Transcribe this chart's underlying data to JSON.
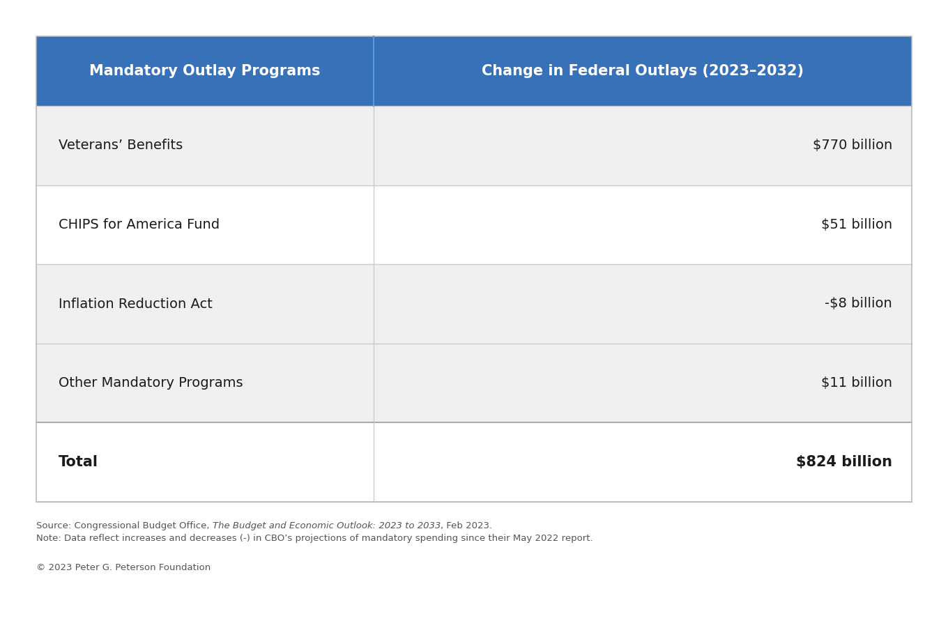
{
  "header_col1": "Mandatory Outlay Programs",
  "header_col2": "Change in Federal Outlays (2023–2032)",
  "rows": [
    {
      "label": "Veterans’ Benefits",
      "value": "$770 billion",
      "bg": "#f0f0f0"
    },
    {
      "label": "CHIPS for America Fund",
      "value": "$51 billion",
      "bg": "#ffffff"
    },
    {
      "label": "Inflation Reduction Act",
      "value": "-$8 billion",
      "bg": "#f0f0f0"
    },
    {
      "label": "Other Mandatory Programs",
      "value": "$11 billion",
      "bg": "#f0f0f0"
    },
    {
      "label": "Total",
      "value": "$824 billion",
      "bg": "#ffffff",
      "bold": true
    }
  ],
  "header_bg": "#3771b8",
  "header_text_color": "#ffffff",
  "divider_color": "#cccccc",
  "col_split": 0.385,
  "outer_bg": "#ffffff",
  "source_line1": "Source: Congressional Budget Office, ",
  "source_italic": "The Budget and Economic Outlook: 2023 to 2033",
  "source_line1_end": ", Feb 2023.",
  "source_line2": "Note: Data reflect increases and decreases (-) in CBO’s projections of mandatory spending since their May 2022 report.",
  "copyright": "© 2023 Peter G. Peterson Foundation",
  "footer_text_color": "#555555",
  "footer_fontsize": 9.5,
  "header_fontsize": 15,
  "row_fontsize": 14,
  "total_fontsize": 15
}
